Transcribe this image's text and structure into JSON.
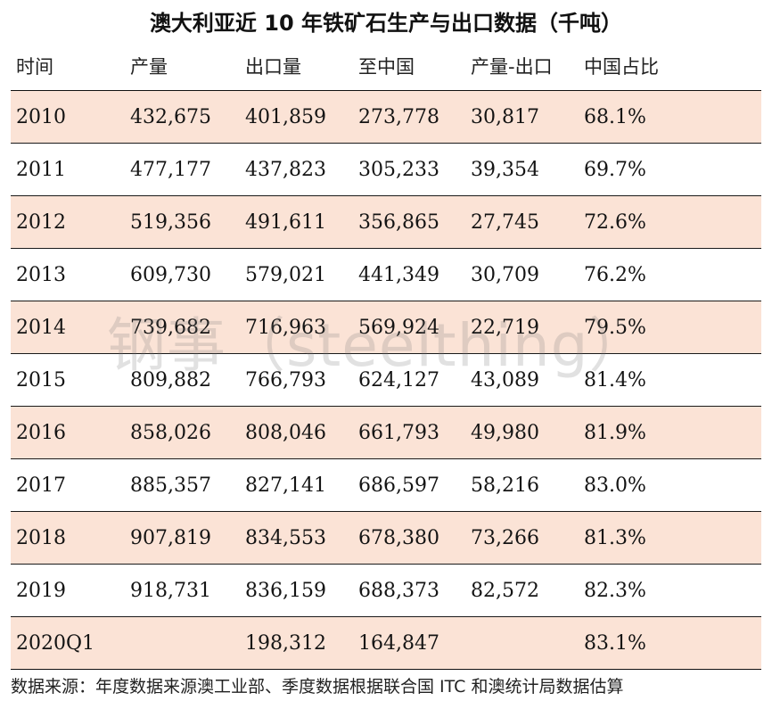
{
  "title": "澳大利亚近 10 年铁矿石生产与出口数据（千吨）",
  "headers": [
    "时间",
    "产量",
    "出口量",
    "至中国",
    "产量-出口",
    "中国占比"
  ],
  "rows": [
    [
      "2010",
      "432,675",
      "401,859",
      "273,778",
      "30,817",
      "68.1%"
    ],
    [
      "2011",
      "477,177",
      "437,823",
      "305,233",
      "39,354",
      "69.7%"
    ],
    [
      "2012",
      "519,356",
      "491,611",
      "356,865",
      "27,745",
      "72.6%"
    ],
    [
      "2013",
      "609,730",
      "579,021",
      "441,349",
      "30,709",
      "76.2%"
    ],
    [
      "2014",
      "739,682",
      "716,963",
      "569,924",
      "22,719",
      "79.5%"
    ],
    [
      "2015",
      "809,882",
      "766,793",
      "624,127",
      "43,089",
      "81.4%"
    ],
    [
      "2016",
      "858,026",
      "808,046",
      "661,793",
      "49,980",
      "81.9%"
    ],
    [
      "2017",
      "885,357",
      "827,141",
      "686,597",
      "58,216",
      "83.0%"
    ],
    [
      "2018",
      "907,819",
      "834,553",
      "678,380",
      "73,266",
      "81.3%"
    ],
    [
      "2019",
      "918,731",
      "836,159",
      "688,373",
      "82,572",
      "82.3%"
    ],
    [
      "2020Q1",
      "",
      "198,312",
      "164,847",
      "",
      "83.1%"
    ]
  ],
  "shaded_row_color": "#fbe3d6",
  "footnote": "数据来源：年度数据来源澳工业部、季度数据根据联合国 ITC 和澳统计局数据估算",
  "watermark": "钢事（steelthing）"
}
